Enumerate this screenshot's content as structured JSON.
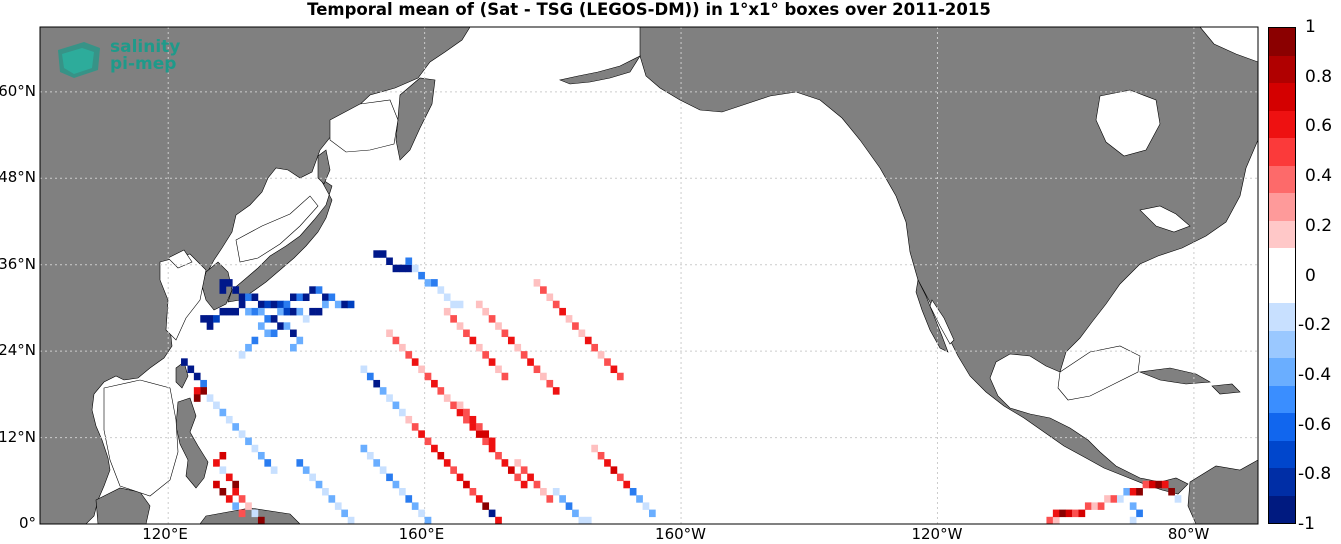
{
  "title": "Temporal mean of (Sat - TSG (LEGOS-DM)) in 1°x1° boxes over 2011-2015",
  "logo": {
    "line1": "salinity",
    "line2": "pi-mep"
  },
  "lat_labels": [
    "60°N",
    "48°N",
    "36°N",
    "24°N",
    "12°N",
    "0°"
  ],
  "lon_labels": [
    "120°E",
    "160°E",
    "160°W",
    "120°W",
    "80°W"
  ],
  "colorbar": {
    "ticks": [
      "1",
      "0.8",
      "0.6",
      "0.4",
      "0.2",
      "0",
      "-0.2",
      "-0.4",
      "-0.6",
      "-0.8",
      "-1"
    ],
    "colors": [
      "#8b0000",
      "#b00000",
      "#d40000",
      "#ee1111",
      "#fb3a3a",
      "#fd6a6a",
      "#fe9a9a",
      "#ffc8c8",
      "#ffffff",
      "#ffffff",
      "#c8e0ff",
      "#9ac8ff",
      "#6aaeff",
      "#3a8eff",
      "#1166ee",
      "#0046cc",
      "#002ea6",
      "#001a80"
    ]
  },
  "colors": {
    "land": "#808080",
    "ocean": "#ffffff",
    "grid": "#cccccc",
    "logo": "#1f9a8a"
  },
  "chart_data": {
    "type": "heatmap",
    "title": "Temporal mean of (Sat - TSG (LEGOS-DM)) in 1°x1° boxes over 2011-2015",
    "xlabel": "",
    "ylabel": "",
    "xlim_lon_east": [
      100,
      290
    ],
    "ylim_lat": [
      0,
      69
    ],
    "clim": [
      -1,
      1
    ],
    "grid": true,
    "colorbar_placement": "right",
    "cells": [
      [
        128,
        33,
        -1
      ],
      [
        129,
        33,
        -1
      ],
      [
        128,
        32,
        -1
      ],
      [
        130,
        32,
        -1
      ],
      [
        131,
        31,
        -1
      ],
      [
        132,
        31,
        -0.6
      ],
      [
        133,
        31,
        -1
      ],
      [
        134,
        30,
        -1
      ],
      [
        135,
        30,
        -0.8
      ],
      [
        136,
        30,
        -1
      ],
      [
        137,
        30,
        -0.8
      ],
      [
        138,
        30,
        -0.6
      ],
      [
        139,
        31,
        -1
      ],
      [
        140,
        31,
        -0.6
      ],
      [
        141,
        31,
        -1
      ],
      [
        142,
        32,
        -1
      ],
      [
        143,
        32,
        -0.6
      ],
      [
        144,
        31,
        -1
      ],
      [
        145,
        31,
        -0.6
      ],
      [
        146,
        30,
        -0.4
      ],
      [
        147,
        30,
        -1
      ],
      [
        148,
        30,
        -0.8
      ],
      [
        125,
        28,
        -1
      ],
      [
        126,
        28,
        -1
      ],
      [
        126,
        27,
        -1
      ],
      [
        127,
        28,
        -0.8
      ],
      [
        128,
        29,
        -1
      ],
      [
        129,
        29,
        -1
      ],
      [
        130,
        29,
        -1
      ],
      [
        131,
        30,
        -1
      ],
      [
        132,
        29,
        -0.4
      ],
      [
        133,
        29,
        -0.6
      ],
      [
        134,
        29,
        -0.4
      ],
      [
        135,
        28,
        -0.6
      ],
      [
        136,
        28,
        -1
      ],
      [
        137,
        29,
        -0.4
      ],
      [
        138,
        29,
        -0.8
      ],
      [
        139,
        29,
        -1
      ],
      [
        140,
        29,
        -0.4
      ],
      [
        141,
        28,
        -0.2
      ],
      [
        142,
        29,
        -1
      ],
      [
        143,
        29,
        -1
      ],
      [
        144,
        30,
        -0.4
      ],
      [
        152,
        37,
        -1
      ],
      [
        153,
        37,
        -1
      ],
      [
        154,
        36,
        -1
      ],
      [
        155,
        35,
        -1
      ],
      [
        156,
        35,
        -1
      ],
      [
        157,
        35,
        -1
      ],
      [
        157,
        36,
        -0.6
      ],
      [
        158,
        35,
        -0.2
      ],
      [
        159,
        34,
        -0.6
      ],
      [
        160,
        33,
        -0.4
      ],
      [
        161,
        33,
        -0.6
      ],
      [
        162,
        32,
        -0.2
      ],
      [
        163,
        31,
        -0.2
      ],
      [
        164,
        30,
        -0.2
      ],
      [
        165,
        30,
        -0.2
      ],
      [
        134,
        27,
        -0.4
      ],
      [
        135,
        26,
        -0.4
      ],
      [
        136,
        26,
        -0.6
      ],
      [
        137,
        27,
        -1
      ],
      [
        138,
        27,
        -0.4
      ],
      [
        139,
        26,
        -1
      ],
      [
        140,
        25,
        -0.4
      ],
      [
        139,
        24,
        -0.4
      ],
      [
        133,
        25,
        -0.6
      ],
      [
        132,
        24,
        -0.4
      ],
      [
        131,
        23,
        -0.2
      ],
      [
        122,
        22,
        -1
      ],
      [
        123,
        21,
        -1
      ],
      [
        124,
        20,
        -1
      ],
      [
        125,
        19,
        -0.6
      ],
      [
        125,
        18,
        1
      ],
      [
        124,
        18,
        0.6
      ],
      [
        124,
        17,
        1
      ],
      [
        126,
        17,
        -0.2
      ],
      [
        127,
        16,
        -0.2
      ],
      [
        128,
        15,
        -0.4
      ],
      [
        129,
        14,
        -0.2
      ],
      [
        130,
        13,
        -0.4
      ],
      [
        131,
        12,
        -0.2
      ],
      [
        132,
        11,
        -0.4
      ],
      [
        133,
        10,
        -0.2
      ],
      [
        134,
        9,
        -0.4
      ],
      [
        135,
        8,
        -0.6
      ],
      [
        136,
        7,
        -0.2
      ],
      [
        128,
        9,
        0.8
      ],
      [
        127,
        8,
        0.6
      ],
      [
        128,
        7,
        -0.2
      ],
      [
        129,
        6,
        0.6
      ],
      [
        130,
        5,
        1
      ],
      [
        130,
        4,
        0.6
      ],
      [
        131,
        3,
        0.4
      ],
      [
        132,
        2,
        0.2
      ],
      [
        133,
        1,
        -0.2
      ],
      [
        134,
        0,
        1
      ],
      [
        127,
        5,
        0.8
      ],
      [
        128,
        4,
        1
      ],
      [
        129,
        3,
        0.6
      ],
      [
        130,
        2,
        -0.4
      ],
      [
        131,
        1,
        0.4
      ],
      [
        140,
        8,
        -0.6
      ],
      [
        141,
        7,
        -0.4
      ],
      [
        142,
        6,
        -0.2
      ],
      [
        143,
        5,
        -0.4
      ],
      [
        144,
        4,
        -0.2
      ],
      [
        145,
        3,
        -0.4
      ],
      [
        146,
        2,
        -0.2
      ],
      [
        147,
        1,
        -0.4
      ],
      [
        148,
        0,
        -0.2
      ],
      [
        150,
        10,
        -0.4
      ],
      [
        151,
        9,
        -0.2
      ],
      [
        152,
        8,
        -0.4
      ],
      [
        153,
        7,
        -0.2
      ],
      [
        154,
        6,
        -0.6
      ],
      [
        155,
        5,
        -0.4
      ],
      [
        156,
        4,
        -0.2
      ],
      [
        157,
        3,
        -0.6
      ],
      [
        158,
        2,
        -0.4
      ],
      [
        159,
        1,
        -0.2
      ],
      [
        160,
        0,
        -0.4
      ],
      [
        150,
        21,
        -0.2
      ],
      [
        151,
        20,
        -0.6
      ],
      [
        152,
        19,
        -1
      ],
      [
        153,
        18,
        -0.4
      ],
      [
        154,
        17,
        -0.2
      ],
      [
        155,
        16,
        -0.4
      ],
      [
        156,
        15,
        -0.2
      ],
      [
        157,
        14,
        0.2
      ],
      [
        158,
        13,
        0.4
      ],
      [
        159,
        12,
        0.6
      ],
      [
        160,
        11,
        0.4
      ],
      [
        161,
        10,
        0.6
      ],
      [
        162,
        9,
        0.8
      ],
      [
        163,
        8,
        0.6
      ],
      [
        164,
        7,
        0.4
      ],
      [
        165,
        6,
        0.6
      ],
      [
        166,
        5,
        0.8
      ],
      [
        167,
        4,
        0.4
      ],
      [
        168,
        3,
        0.6
      ],
      [
        169,
        2,
        1
      ],
      [
        170,
        1,
        -1
      ],
      [
        171,
        0,
        0.6
      ],
      [
        154,
        26,
        0.2
      ],
      [
        155,
        25,
        0.4
      ],
      [
        156,
        24,
        0.2
      ],
      [
        157,
        23,
        0.4
      ],
      [
        158,
        22,
        0.6
      ],
      [
        159,
        21,
        0.2
      ],
      [
        160,
        20,
        0.4
      ],
      [
        161,
        19,
        0.6
      ],
      [
        162,
        18,
        0.4
      ],
      [
        163,
        17,
        0.2
      ],
      [
        164,
        16,
        0.4
      ],
      [
        165,
        15,
        0.6
      ],
      [
        166,
        14,
        0.4
      ],
      [
        167,
        13,
        0.6
      ],
      [
        168,
        12,
        0.8
      ],
      [
        169,
        11,
        0.4
      ],
      [
        170,
        10,
        0.6
      ],
      [
        171,
        9,
        0.4
      ],
      [
        172,
        8,
        0.6
      ],
      [
        173,
        7,
        0.8
      ],
      [
        174,
        6,
        0.4
      ],
      [
        175,
        5,
        0.6
      ],
      [
        168,
        30,
        0.2
      ],
      [
        169,
        29,
        0.2
      ],
      [
        170,
        28,
        0.4
      ],
      [
        171,
        27,
        0.2
      ],
      [
        172,
        26,
        0.4
      ],
      [
        173,
        25,
        0.6
      ],
      [
        174,
        24,
        0.2
      ],
      [
        175,
        23,
        0.4
      ],
      [
        176,
        22,
        0.6
      ],
      [
        177,
        21,
        0.4
      ],
      [
        178,
        20,
        0.2
      ],
      [
        179,
        19,
        0.4
      ],
      [
        180,
        18,
        0.6
      ],
      [
        177,
        33,
        0.2
      ],
      [
        178,
        32,
        0.4
      ],
      [
        179,
        31,
        0.2
      ],
      [
        180,
        30,
        0.4
      ],
      [
        181,
        29,
        0.6
      ],
      [
        182,
        28,
        0.2
      ],
      [
        183,
        27,
        0.4
      ],
      [
        184,
        26,
        0.2
      ],
      [
        185,
        25,
        0.6
      ],
      [
        186,
        24,
        0.4
      ],
      [
        187,
        23,
        0.2
      ],
      [
        188,
        22,
        0.4
      ],
      [
        189,
        21,
        0.6
      ],
      [
        190,
        20,
        0.4
      ],
      [
        163,
        29,
        0.2
      ],
      [
        164,
        28,
        0.4
      ],
      [
        165,
        27,
        0.2
      ],
      [
        166,
        26,
        0.4
      ],
      [
        167,
        25,
        0.6
      ],
      [
        168,
        24,
        0.2
      ],
      [
        169,
        23,
        0.4
      ],
      [
        170,
        22,
        0.6
      ],
      [
        171,
        21,
        0.2
      ],
      [
        172,
        20,
        0.4
      ],
      [
        186,
        10,
        0.2
      ],
      [
        187,
        9,
        0.4
      ],
      [
        188,
        8,
        0.6
      ],
      [
        189,
        7,
        0.8
      ],
      [
        190,
        6,
        0.4
      ],
      [
        191,
        5,
        0.6
      ],
      [
        192,
        4,
        -0.6
      ],
      [
        193,
        3,
        -0.4
      ],
      [
        194,
        2,
        -0.2
      ],
      [
        195,
        1,
        -0.4
      ],
      [
        180,
        4,
        -0.2
      ],
      [
        181,
        3,
        -0.4
      ],
      [
        182,
        2,
        -0.6
      ],
      [
        183,
        1,
        -0.4
      ],
      [
        184,
        0,
        -0.2
      ],
      [
        185,
        0,
        -0.2
      ],
      [
        174,
        8,
        0.2
      ],
      [
        175,
        7,
        0.4
      ],
      [
        176,
        6,
        0.6
      ],
      [
        177,
        5,
        0.4
      ],
      [
        178,
        4,
        0.2
      ],
      [
        179,
        3,
        0.4
      ],
      [
        165,
        16,
        0.2
      ],
      [
        166,
        15,
        0.4
      ],
      [
        167,
        14,
        0.6
      ],
      [
        168,
        13,
        0.4
      ],
      [
        169,
        12,
        0.8
      ],
      [
        170,
        11,
        0.6
      ],
      [
        257,
        0,
        0.4
      ],
      [
        258,
        0,
        0.2
      ],
      [
        258,
        1,
        0.6
      ],
      [
        259,
        1,
        1
      ],
      [
        260,
        1,
        0.8
      ],
      [
        261,
        1,
        0.4
      ],
      [
        262,
        1,
        0.8
      ],
      [
        263,
        2,
        0.4
      ],
      [
        264,
        2,
        0.2
      ],
      [
        265,
        2,
        0.4
      ],
      [
        266,
        3,
        0.2
      ],
      [
        267,
        3,
        0.4
      ],
      [
        268,
        3,
        -0.2
      ],
      [
        269,
        4,
        -0.4
      ],
      [
        270,
        4,
        0.6
      ],
      [
        271,
        4,
        1
      ],
      [
        272,
        5,
        0.4
      ],
      [
        273,
        5,
        0.8
      ],
      [
        274,
        5,
        1
      ],
      [
        275,
        5,
        0.6
      ],
      [
        276,
        4,
        1
      ],
      [
        277,
        3,
        -0.2
      ],
      [
        270,
        2,
        -0.4
      ],
      [
        271,
        1,
        -0.6
      ],
      [
        270,
        0,
        -0.2
      ]
    ]
  }
}
